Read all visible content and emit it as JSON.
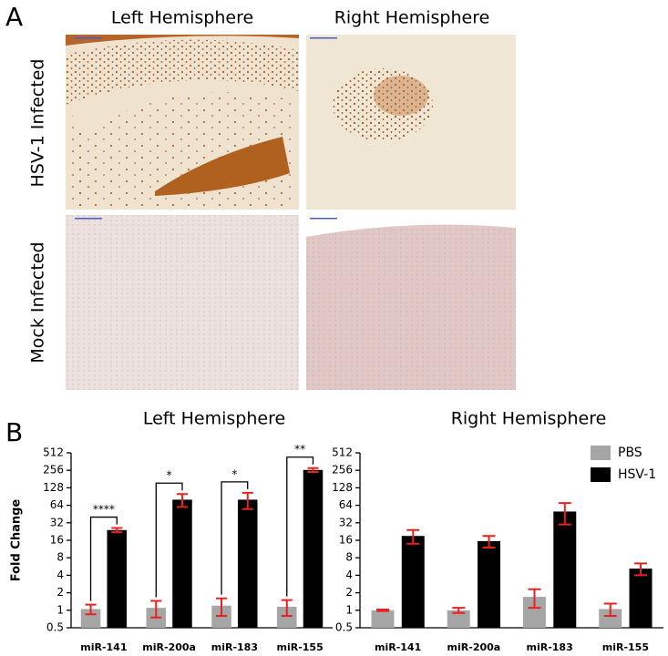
{
  "figure": {
    "panel_a_label": "A",
    "panel_b_label": "B",
    "columns": [
      "Left Hemisphere",
      "Right Hemisphere"
    ],
    "rows": [
      "HSV-1 Infected",
      "Mock Infected"
    ]
  },
  "chart_data": [
    {
      "type": "bar",
      "title": "Left Hemisphere",
      "y_label": "Fold Change",
      "log_scale": true,
      "categories": [
        "miR-141",
        "miR-200a",
        "miR-183",
        "miR-155"
      ],
      "series": [
        {
          "name": "PBS",
          "color": "#a6a6a6",
          "values": [
            1.05,
            1.1,
            1.2,
            1.15
          ],
          "errors": [
            0.2,
            0.35,
            0.4,
            0.35
          ]
        },
        {
          "name": "HSV-1",
          "color": "#000000",
          "values": [
            24,
            80,
            80,
            260
          ],
          "errors": [
            2,
            20,
            25,
            20
          ]
        }
      ],
      "error_color": "#e8231f",
      "significance": [
        "****",
        "*",
        "*",
        "**"
      ],
      "ylim": [
        0.5,
        512
      ],
      "yticks": [
        0.5,
        1,
        2,
        4,
        8,
        16,
        32,
        64,
        128,
        256,
        512
      ]
    },
    {
      "type": "bar",
      "title": "Right Hemisphere",
      "log_scale": true,
      "legend": "upper right",
      "categories": [
        "miR-141",
        "miR-200a",
        "miR-183",
        "miR-155"
      ],
      "series": [
        {
          "name": "PBS",
          "color": "#a6a6a6",
          "values": [
            1.0,
            1.0,
            1.7,
            1.05
          ],
          "errors": [
            0.03,
            0.1,
            0.6,
            0.25
          ]
        },
        {
          "name": "HSV-1",
          "color": "#000000",
          "values": [
            19,
            15.5,
            50,
            5.2
          ],
          "errors": [
            5,
            3.5,
            20,
            1.2
          ]
        }
      ],
      "error_color": "#e8231f",
      "ylim": [
        0.5,
        512
      ],
      "yticks": [
        0.5,
        1,
        2,
        4,
        8,
        16,
        32,
        64,
        128,
        256,
        512
      ]
    }
  ]
}
